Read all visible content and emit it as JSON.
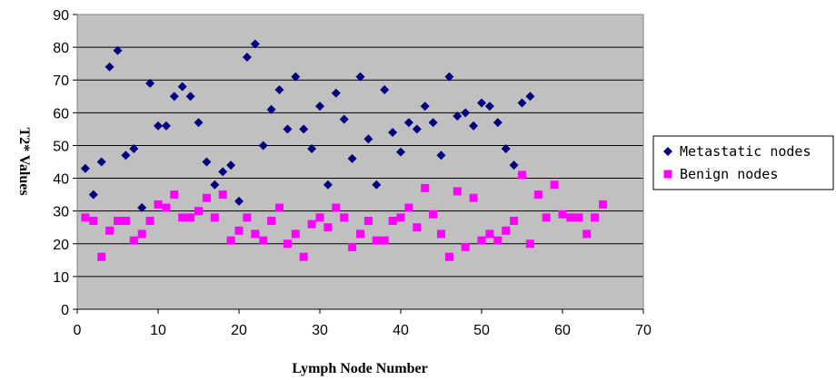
{
  "chart_data": {
    "type": "scatter",
    "title": "",
    "xlabel": "Lymph Node Number",
    "ylabel": "T2* Values",
    "xlim": [
      0,
      70
    ],
    "ylim": [
      0,
      90
    ],
    "xticks": [
      "0",
      "10",
      "20",
      "30",
      "40",
      "50",
      "60",
      "70"
    ],
    "yticks": [
      "0",
      "10",
      "20",
      "30",
      "40",
      "50",
      "60",
      "70",
      "80",
      "90"
    ],
    "grid": "horizontal",
    "background": "#c0c0c0",
    "legend_position": "right",
    "series": [
      {
        "name": "Metastatic nodes",
        "marker": "diamond",
        "color": "#000080",
        "points": [
          [
            1,
            43
          ],
          [
            2,
            35
          ],
          [
            3,
            45
          ],
          [
            4,
            74
          ],
          [
            5,
            79
          ],
          [
            6,
            47
          ],
          [
            7,
            49
          ],
          [
            8,
            31
          ],
          [
            9,
            69
          ],
          [
            10,
            56
          ],
          [
            11,
            56
          ],
          [
            12,
            65
          ],
          [
            13,
            68
          ],
          [
            14,
            65
          ],
          [
            15,
            57
          ],
          [
            16,
            45
          ],
          [
            17,
            38
          ],
          [
            18,
            42
          ],
          [
            19,
            44
          ],
          [
            20,
            33
          ],
          [
            21,
            77
          ],
          [
            22,
            81
          ],
          [
            23,
            50
          ],
          [
            24,
            61
          ],
          [
            25,
            67
          ],
          [
            26,
            55
          ],
          [
            27,
            71
          ],
          [
            28,
            55
          ],
          [
            29,
            49
          ],
          [
            30,
            62
          ],
          [
            31,
            38
          ],
          [
            32,
            66
          ],
          [
            33,
            58
          ],
          [
            34,
            46
          ],
          [
            35,
            71
          ],
          [
            36,
            52
          ],
          [
            37,
            38
          ],
          [
            38,
            67
          ],
          [
            39,
            54
          ],
          [
            40,
            48
          ],
          [
            41,
            57
          ],
          [
            42,
            55
          ],
          [
            43,
            62
          ],
          [
            44,
            57
          ],
          [
            45,
            47
          ],
          [
            46,
            71
          ],
          [
            47,
            59
          ],
          [
            48,
            60
          ],
          [
            49,
            56
          ],
          [
            50,
            63
          ],
          [
            51,
            62
          ],
          [
            52,
            57
          ],
          [
            53,
            49
          ],
          [
            54,
            44
          ],
          [
            55,
            63
          ],
          [
            56,
            65
          ]
        ]
      },
      {
        "name": "Benign nodes",
        "marker": "square",
        "color": "#ff00ff",
        "points": [
          [
            1,
            28
          ],
          [
            2,
            27
          ],
          [
            3,
            16
          ],
          [
            4,
            24
          ],
          [
            5,
            27
          ],
          [
            6,
            27
          ],
          [
            7,
            21
          ],
          [
            8,
            23
          ],
          [
            9,
            27
          ],
          [
            10,
            32
          ],
          [
            11,
            31
          ],
          [
            12,
            35
          ],
          [
            13,
            28
          ],
          [
            14,
            28
          ],
          [
            15,
            30
          ],
          [
            16,
            34
          ],
          [
            17,
            28
          ],
          [
            18,
            35
          ],
          [
            19,
            21
          ],
          [
            20,
            24
          ],
          [
            21,
            28
          ],
          [
            22,
            23
          ],
          [
            23,
            21
          ],
          [
            24,
            27
          ],
          [
            25,
            31
          ],
          [
            26,
            20
          ],
          [
            27,
            23
          ],
          [
            28,
            16
          ],
          [
            29,
            26
          ],
          [
            30,
            28
          ],
          [
            31,
            25
          ],
          [
            32,
            31
          ],
          [
            33,
            28
          ],
          [
            34,
            19
          ],
          [
            35,
            23
          ],
          [
            36,
            27
          ],
          [
            37,
            21
          ],
          [
            38,
            21
          ],
          [
            39,
            27
          ],
          [
            40,
            28
          ],
          [
            41,
            31
          ],
          [
            42,
            25
          ],
          [
            43,
            37
          ],
          [
            44,
            29
          ],
          [
            45,
            23
          ],
          [
            46,
            16
          ],
          [
            47,
            36
          ],
          [
            48,
            19
          ],
          [
            49,
            34
          ],
          [
            50,
            21
          ],
          [
            51,
            23
          ],
          [
            52,
            21
          ],
          [
            53,
            24
          ],
          [
            54,
            27
          ],
          [
            55,
            41
          ],
          [
            56,
            20
          ],
          [
            57,
            35
          ],
          [
            58,
            28
          ],
          [
            59,
            38
          ],
          [
            60,
            29
          ],
          [
            61,
            28
          ],
          [
            62,
            28
          ],
          [
            63,
            23
          ],
          [
            64,
            28
          ],
          [
            65,
            32
          ]
        ]
      }
    ]
  }
}
